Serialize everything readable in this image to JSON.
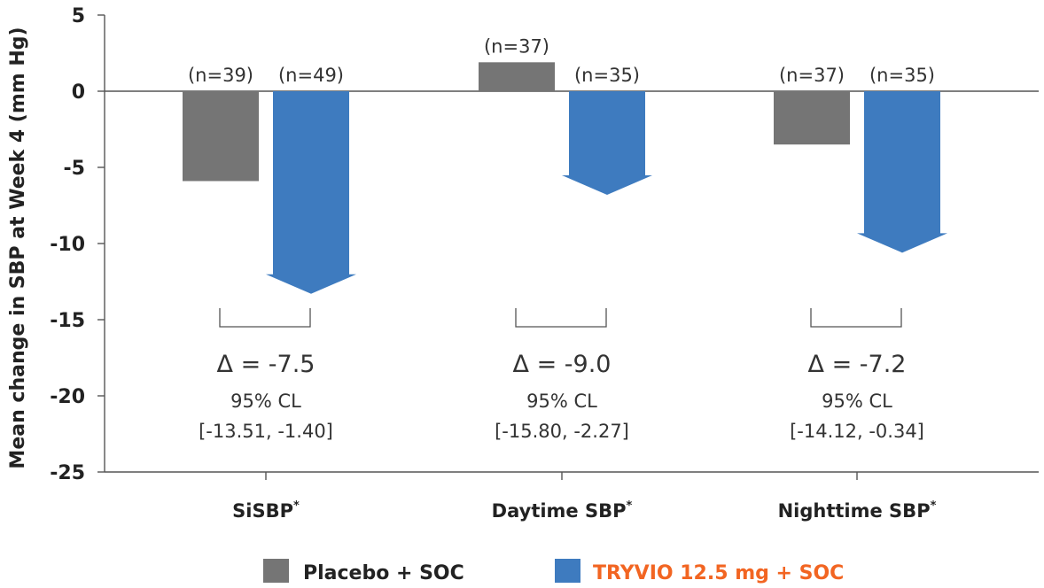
{
  "chart_data": {
    "type": "bar",
    "title": "",
    "ylabel": "Mean change in SBP at Week 4 (mm Hg)",
    "xlabel": "",
    "ylim": [
      -25,
      5
    ],
    "yticks": [
      5,
      0,
      -5,
      -10,
      -15,
      -20,
      -25
    ],
    "grid": false,
    "legend_position": "bottom",
    "categories": [
      "SiSBP",
      "Daytime SBP",
      "Nighttime SBP"
    ],
    "category_superscript": "*",
    "series": [
      {
        "name": "Placebo + SOC",
        "color": "#757575",
        "label_color": "#222222",
        "shape": "bar",
        "values": [
          -5.9,
          1.9,
          -3.5
        ],
        "n_labels": [
          "(n=39)",
          "(n=37)",
          "(n=37)"
        ]
      },
      {
        "name": "TRYVIO 12.5 mg + SOC",
        "color": "#3e7bbf",
        "label_color": "#f26522",
        "shape": "arrow",
        "values": [
          -13.3,
          -6.8,
          -10.6
        ],
        "n_labels": [
          "(n=49)",
          "(n=35)",
          "(n=35)"
        ]
      }
    ],
    "comparisons": [
      {
        "delta": "Δ = -7.5",
        "cl_label": "95% CL",
        "cl_range": "[-13.51, -1.40]"
      },
      {
        "delta": "Δ = -9.0",
        "cl_label": "95% CL",
        "cl_range": "[-15.80, -2.27]"
      },
      {
        "delta": "Δ = -7.2",
        "cl_label": "95% CL",
        "cl_range": "[-14.12, -0.34]"
      }
    ]
  }
}
